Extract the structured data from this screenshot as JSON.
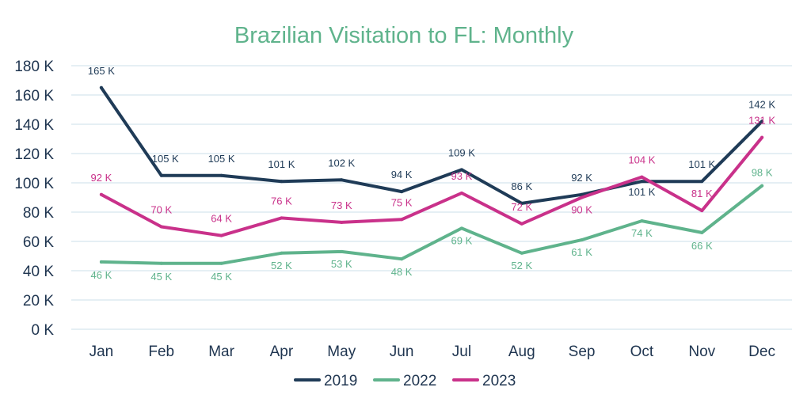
{
  "chart_data": {
    "type": "line",
    "title": "Brazilian Visitation to FL: Monthly",
    "xlabel": "",
    "ylabel": "",
    "ylim": [
      0,
      180
    ],
    "y_ticks": [
      "0 K",
      "20 K",
      "40 K",
      "60 K",
      "80 K",
      "100 K",
      "120 K",
      "140 K",
      "160 K",
      "180 K"
    ],
    "categories": [
      "Jan",
      "Feb",
      "Mar",
      "Apr",
      "May",
      "Jun",
      "Jul",
      "Aug",
      "Sep",
      "Oct",
      "Nov",
      "Dec"
    ],
    "grid": true,
    "legend_position": "bottom",
    "series": [
      {
        "name": "2019",
        "color": "#1f3b57",
        "values": [
          165,
          105,
          105,
          101,
          102,
          94,
          109,
          86,
          92,
          101,
          101,
          142
        ],
        "labels": [
          "165 K",
          "105 K",
          "105 K",
          "101 K",
          "102 K",
          "94 K",
          "109 K",
          "86 K",
          "92 K",
          "101 K",
          "101 K",
          "142 K"
        ]
      },
      {
        "name": "2022",
        "color": "#5fb38c",
        "values": [
          46,
          45,
          45,
          52,
          53,
          48,
          69,
          52,
          61,
          74,
          66,
          98
        ],
        "labels": [
          "46 K",
          "45 K",
          "45 K",
          "52 K",
          "53 K",
          "48 K",
          "69 K",
          "52 K",
          "61 K",
          "74 K",
          "66 K",
          "98 K"
        ]
      },
      {
        "name": "2023",
        "color": "#c9318a",
        "values": [
          92,
          70,
          64,
          76,
          73,
          75,
          93,
          72,
          90,
          104,
          81,
          131
        ],
        "labels": [
          "92 K",
          "70 K",
          "64 K",
          "76 K",
          "73 K",
          "75 K",
          "93 K",
          "72 K",
          "90 K",
          "104 K",
          "81 K",
          "131 K"
        ]
      }
    ]
  },
  "colors": {
    "title": "#5fb38c",
    "axis_text": "#1f3550",
    "grid": "#d5e5ee"
  }
}
